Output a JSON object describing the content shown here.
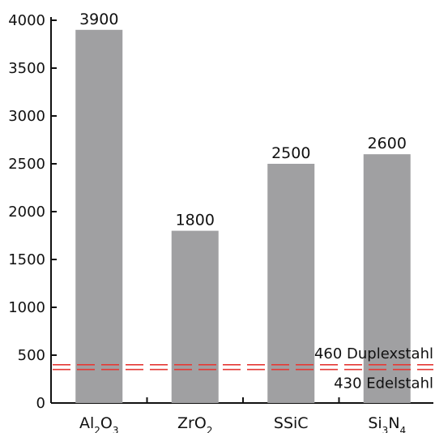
{
  "chart_data": {
    "type": "bar",
    "title": "",
    "xlabel": "",
    "ylabel": "",
    "categories": [
      {
        "base": "Al",
        "sub1": "2",
        "mid": "O",
        "sub2": "3"
      },
      {
        "base": "ZrO",
        "sub1": "2",
        "mid": "",
        "sub2": ""
      },
      {
        "base": "SSiC",
        "sub1": "",
        "mid": "",
        "sub2": ""
      },
      {
        "base": "Si",
        "sub1": "3",
        "mid": "N",
        "sub2": "4"
      }
    ],
    "values": [
      3900,
      1800,
      2500,
      2600
    ],
    "value_labels": [
      "3900",
      "1800",
      "2500",
      "2600"
    ],
    "ylim": [
      0,
      4000
    ],
    "yticks": [
      0,
      500,
      1000,
      1500,
      2000,
      2500,
      3000,
      3500,
      4000
    ],
    "ytick_labels": [
      "0",
      "500",
      "1000",
      "1500",
      "2000",
      "2500",
      "3000",
      "3500",
      "4000"
    ],
    "grid": false,
    "bar_color": "#a0a0a2",
    "reference_lines": [
      {
        "value": 400,
        "label": "460 Duplexstahl",
        "color": "#e53935",
        "style": "dashed"
      },
      {
        "value": 350,
        "label": "430 Edelstahl",
        "color": "#e53935",
        "style": "dashed"
      }
    ]
  }
}
